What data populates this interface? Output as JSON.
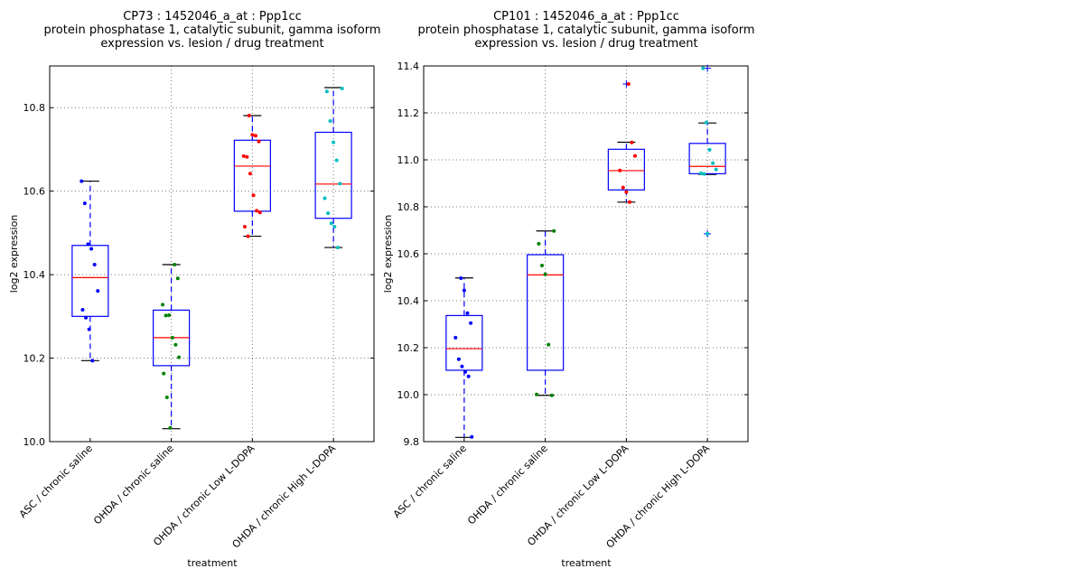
{
  "colors": {
    "box": "#0000ff",
    "median": "#ff0000",
    "cap": "#000000",
    "groups": [
      "#0000ff",
      "#008000",
      "#ff0000",
      "#00bfbf"
    ]
  },
  "chart_data": [
    {
      "type": "boxplot",
      "title": [
        "CP73 : 1452046_a_at : Ppp1cc",
        "protein phosphatase 1, catalytic subunit, gamma isoform",
        "expression vs. lesion / drug treatment"
      ],
      "xlabel": "treatment",
      "ylabel": "log2 expression",
      "ylim": [
        10.0,
        10.9
      ],
      "yticks": [
        10.0,
        10.2,
        10.4,
        10.6,
        10.8
      ],
      "ytick_labels": [
        "10.0",
        "10.2",
        "10.4",
        "10.6",
        "10.8"
      ],
      "grid": true,
      "categories": [
        "ASC / chronic saline",
        "OHDA / chronic saline",
        "OHDA / chronic Low L-DOPA",
        "OHDA / chronic High L-DOPA"
      ],
      "boxes": [
        {
          "whislo": 10.194,
          "q1": 10.3,
          "med": 10.393,
          "q3": 10.47,
          "whishi": 10.624,
          "outliers": []
        },
        {
          "whislo": 10.031,
          "q1": 10.182,
          "med": 10.249,
          "q3": 10.315,
          "whishi": 10.424,
          "outliers": []
        },
        {
          "whislo": 10.492,
          "q1": 10.552,
          "med": 10.66,
          "q3": 10.722,
          "whishi": 10.781,
          "outliers": []
        },
        {
          "whislo": 10.465,
          "q1": 10.535,
          "med": 10.617,
          "q3": 10.741,
          "whishi": 10.848,
          "outliers": []
        }
      ],
      "points": [
        [
          10.624,
          10.571,
          10.473,
          10.462,
          10.424,
          10.361,
          10.316,
          10.297,
          10.269,
          10.194
        ],
        [
          10.424,
          10.391,
          10.328,
          10.302,
          10.303,
          10.249,
          10.232,
          10.202,
          10.163,
          10.106,
          10.033
        ],
        [
          10.781,
          10.735,
          10.733,
          10.719,
          10.684,
          10.682,
          10.642,
          10.59,
          10.553,
          10.549,
          10.515,
          10.492
        ],
        [
          10.846,
          10.839,
          10.768,
          10.717,
          10.674,
          10.618,
          10.583,
          10.547,
          10.523,
          10.515,
          10.465
        ]
      ]
    },
    {
      "type": "boxplot",
      "title": [
        "CP101 : 1452046_a_at : Ppp1cc",
        "protein phosphatase 1, catalytic subunit, gamma isoform",
        "expression vs. lesion / drug treatment"
      ],
      "xlabel": "treatment",
      "ylabel": "log2 expression",
      "ylim": [
        9.8,
        11.4
      ],
      "yticks": [
        9.8,
        10.0,
        10.2,
        10.4,
        10.6,
        10.8,
        11.0,
        11.2,
        11.4
      ],
      "ytick_labels": [
        "9.8",
        "10.0",
        "10.2",
        "10.4",
        "10.6",
        "10.8",
        "11.0",
        "11.2",
        "11.4"
      ],
      "grid": true,
      "categories": [
        "ASC / chronic saline",
        "OHDA / chronic saline",
        "OHDA / chronic Low L-DOPA",
        "OHDA / chronic High L-DOPA"
      ],
      "boxes": [
        {
          "whislo": 9.818,
          "q1": 10.104,
          "med": 10.196,
          "q3": 10.337,
          "whishi": 10.497,
          "outliers": []
        },
        {
          "whislo": 9.997,
          "q1": 10.104,
          "med": 10.51,
          "q3": 10.596,
          "whishi": 10.697,
          "outliers": []
        },
        {
          "whislo": 10.82,
          "q1": 10.872,
          "med": 10.954,
          "q3": 11.045,
          "whishi": 11.075,
          "outliers": [
            11.323
          ]
        },
        {
          "whislo": 10.938,
          "q1": 10.941,
          "med": 10.972,
          "q3": 11.07,
          "whishi": 11.157,
          "outliers": [
            11.39,
            10.685
          ]
        }
      ],
      "points": [
        [
          10.496,
          10.444,
          10.347,
          10.305,
          10.243,
          10.151,
          10.12,
          10.097,
          10.078,
          9.82
        ],
        [
          10.697,
          10.643,
          10.55,
          10.513,
          10.213,
          9.997,
          10.001
        ],
        [
          11.323,
          11.074,
          11.017,
          10.955,
          10.882,
          10.863,
          10.82
        ],
        [
          11.39,
          11.159,
          11.043,
          10.986,
          10.959,
          10.943,
          10.94,
          10.685
        ]
      ]
    }
  ]
}
